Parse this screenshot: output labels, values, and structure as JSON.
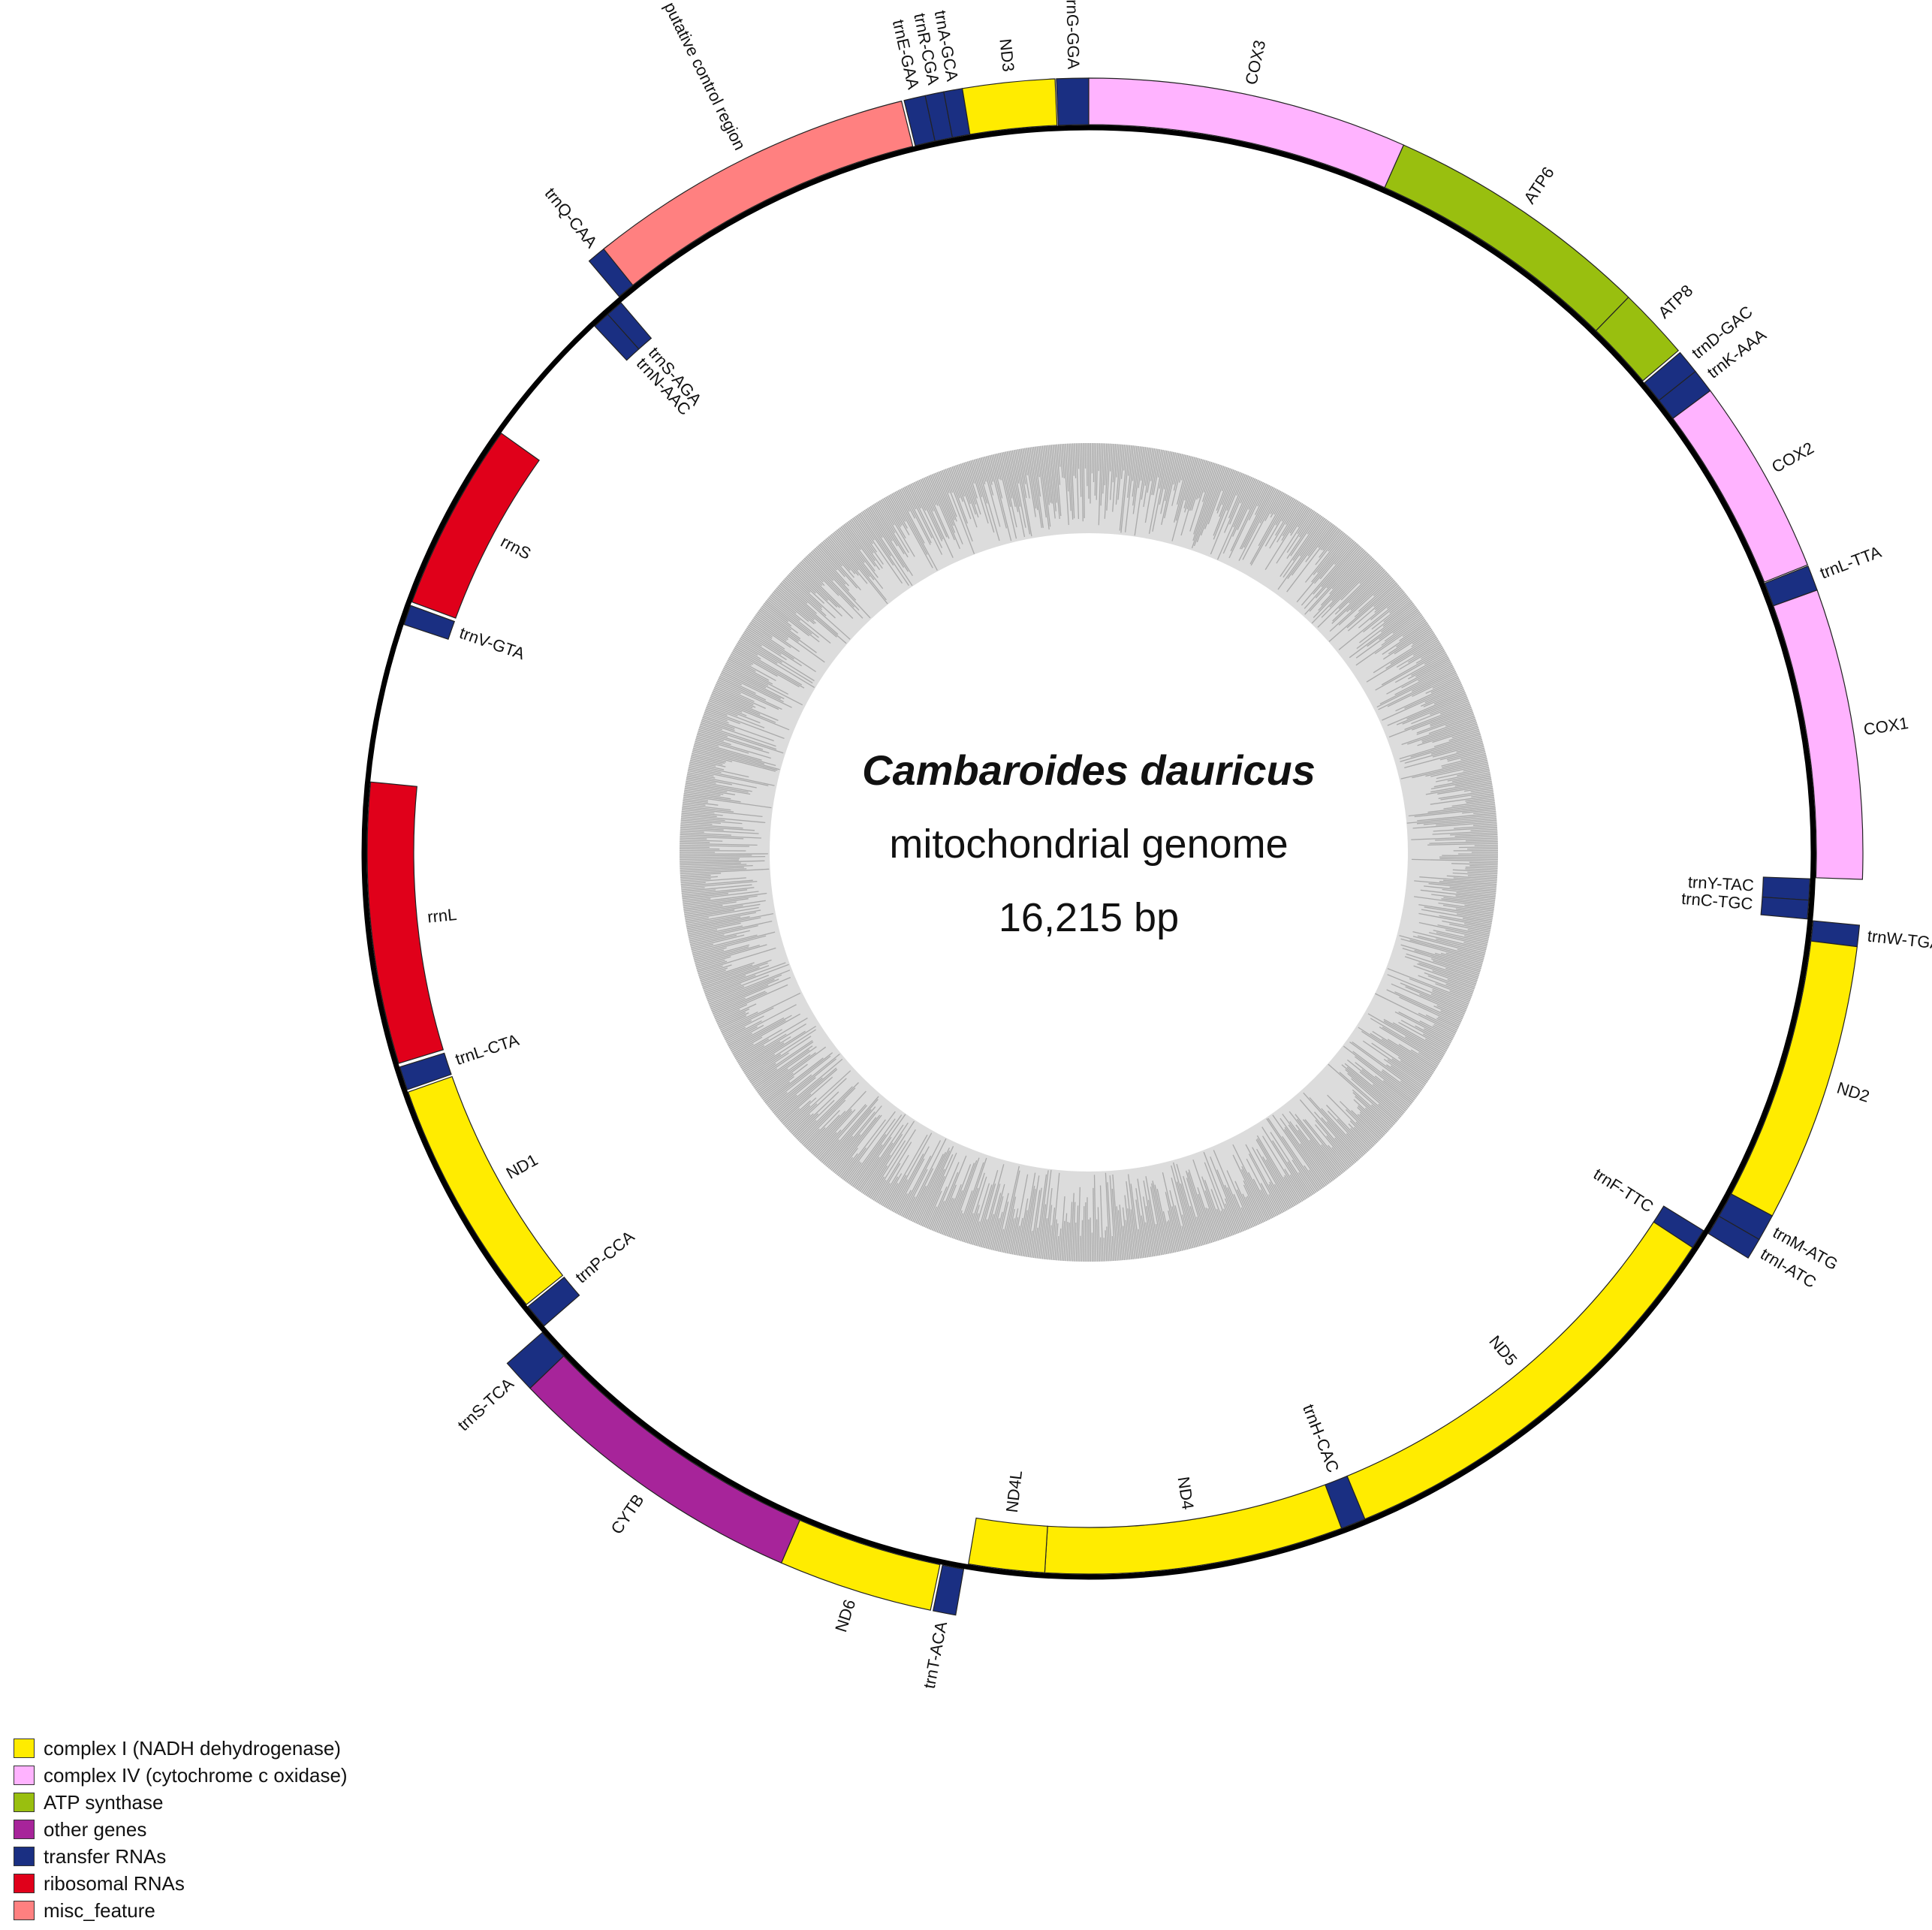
{
  "title": {
    "species": "Cambaroides dauricus",
    "subtitle": "mitochondrial genome",
    "length": "16,215 bp"
  },
  "genome_length": 16215,
  "colors": {
    "complex1": "#FFEC00",
    "complex4": "#FFB3FF",
    "atp": "#99BF0F",
    "other": "#A7249A",
    "trna": "#1A2F82",
    "rrna": "#E0001A",
    "misc": "#FF8080"
  },
  "legend": [
    {
      "label": "complex I (NADH dehydrogenase)",
      "color": "#FFEC00"
    },
    {
      "label": "complex IV (cytochrome c oxidase)",
      "color": "#FFB3FF"
    },
    {
      "label": "ATP synthase",
      "color": "#99BF0F"
    },
    {
      "label": "other genes",
      "color": "#A7249A"
    },
    {
      "label": "transfer RNAs",
      "color": "#1A2F82"
    },
    {
      "label": "ribosomal RNAs",
      "color": "#E0001A"
    },
    {
      "label": "misc_feature",
      "color": "#FF8080"
    }
  ],
  "features": [
    {
      "name": "trnG-GGA",
      "type": "trna",
      "start_deg": 357.6,
      "end_deg": 360.0,
      "strand": "outer"
    },
    {
      "name": "COX3",
      "type": "complex4",
      "start_deg": 0.0,
      "end_deg": 24.0,
      "strand": "outer"
    },
    {
      "name": "ATP6",
      "type": "atp",
      "start_deg": 24.0,
      "end_deg": 44.2,
      "strand": "outer"
    },
    {
      "name": "ATP8",
      "type": "atp",
      "start_deg": 44.2,
      "end_deg": 49.6,
      "strand": "outer"
    },
    {
      "name": "trnD-GAC",
      "type": "trna",
      "start_deg": 49.8,
      "end_deg": 51.6,
      "strand": "outer"
    },
    {
      "name": "trnK-AAA",
      "type": "trna",
      "start_deg": 51.6,
      "end_deg": 53.4,
      "strand": "outer"
    },
    {
      "name": "COX2",
      "type": "complex4",
      "start_deg": 53.4,
      "end_deg": 68.2,
      "strand": "outer"
    },
    {
      "name": "trnL-TTA",
      "type": "trna",
      "start_deg": 68.3,
      "end_deg": 70.2,
      "strand": "outer"
    },
    {
      "name": "COX1",
      "type": "complex4",
      "start_deg": 70.2,
      "end_deg": 92.0,
      "strand": "outer"
    },
    {
      "name": "trnY-TAC",
      "type": "trna",
      "start_deg": 92.1,
      "end_deg": 93.8,
      "strand": "inner"
    },
    {
      "name": "trnC-TGC",
      "type": "trna",
      "start_deg": 93.8,
      "end_deg": 95.3,
      "strand": "inner"
    },
    {
      "name": "trnW-TGA",
      "type": "trna",
      "start_deg": 95.4,
      "end_deg": 97.0,
      "strand": "outer"
    },
    {
      "name": "ND2",
      "type": "complex1",
      "start_deg": 97.0,
      "end_deg": 118.0,
      "strand": "outer"
    },
    {
      "name": "trnM-ATG",
      "type": "trna",
      "start_deg": 118.0,
      "end_deg": 120.0,
      "strand": "outer"
    },
    {
      "name": "trnI-ATC",
      "type": "trna",
      "start_deg": 120.0,
      "end_deg": 121.6,
      "strand": "outer"
    },
    {
      "name": "trnF-TTC",
      "type": "trna",
      "start_deg": 121.6,
      "end_deg": 123.2,
      "strand": "inner"
    },
    {
      "name": "ND5",
      "type": "complex1",
      "start_deg": 123.2,
      "end_deg": 157.5,
      "strand": "inner"
    },
    {
      "name": "trnH-CAC",
      "type": "trna",
      "start_deg": 157.5,
      "end_deg": 159.5,
      "strand": "inner"
    },
    {
      "name": "ND4",
      "type": "complex1",
      "start_deg": 159.5,
      "end_deg": 183.5,
      "strand": "inner"
    },
    {
      "name": "ND4L",
      "type": "complex1",
      "start_deg": 183.5,
      "end_deg": 189.6,
      "strand": "inner"
    },
    {
      "name": "trnT-ACA",
      "type": "trna",
      "start_deg": 189.9,
      "end_deg": 191.6,
      "strand": "outer"
    },
    {
      "name": "ND6",
      "type": "complex1",
      "start_deg": 191.8,
      "end_deg": 203.4,
      "strand": "outer"
    },
    {
      "name": "CYTB",
      "type": "other",
      "start_deg": 203.4,
      "end_deg": 226.2,
      "strand": "outer"
    },
    {
      "name": "trnS-TCA",
      "type": "trna",
      "start_deg": 226.2,
      "end_deg": 228.7,
      "strand": "outer"
    },
    {
      "name": "trnP-CCA",
      "type": "trna",
      "start_deg": 229.0,
      "end_deg": 231.0,
      "strand": "inner"
    },
    {
      "name": "ND1",
      "type": "complex1",
      "start_deg": 231.2,
      "end_deg": 250.6,
      "strand": "inner"
    },
    {
      "name": "trnL-CTA",
      "type": "trna",
      "start_deg": 250.8,
      "end_deg": 252.7,
      "strand": "inner"
    },
    {
      "name": "rrnL",
      "type": "rrna",
      "start_deg": 253.0,
      "end_deg": 275.6,
      "strand": "inner"
    },
    {
      "name": "trnV-GTA",
      "type": "trna",
      "start_deg": 288.4,
      "end_deg": 290.0,
      "strand": "inner"
    },
    {
      "name": "rrnS",
      "type": "rrna",
      "start_deg": 290.3,
      "end_deg": 305.5,
      "strand": "inner"
    },
    {
      "name": "trnN-AAC",
      "type": "trna",
      "start_deg": 316.8,
      "end_deg": 318.2,
      "strand": "inner"
    },
    {
      "name": "trnS-AGA",
      "type": "trna",
      "start_deg": 318.2,
      "end_deg": 319.6,
      "strand": "inner"
    },
    {
      "name": "trnQ-CAA",
      "type": "trna",
      "start_deg": 319.8,
      "end_deg": 321.6,
      "strand": "outer"
    },
    {
      "name": "putative control region",
      "type": "misc",
      "start_deg": 321.2,
      "end_deg": 346.0,
      "strand": "outer"
    },
    {
      "name": "trnE-GAA",
      "type": "trna",
      "start_deg": 346.2,
      "end_deg": 347.8,
      "strand": "outer"
    },
    {
      "name": "trnR-CGA",
      "type": "trna",
      "start_deg": 347.8,
      "end_deg": 349.2,
      "strand": "outer"
    },
    {
      "name": "trnA-GCA",
      "type": "trna",
      "start_deg": 349.2,
      "end_deg": 350.6,
      "strand": "outer"
    },
    {
      "name": "ND3",
      "type": "complex1",
      "start_deg": 350.6,
      "end_deg": 357.5,
      "strand": "outer"
    }
  ]
}
